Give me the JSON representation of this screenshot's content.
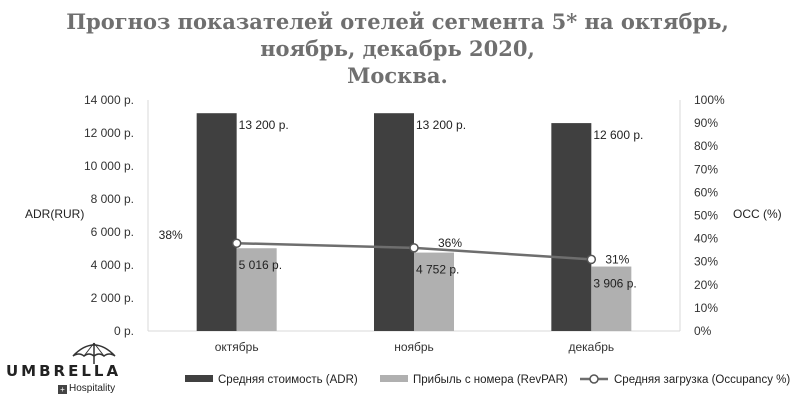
{
  "chart_data": {
    "type": "bar",
    "title_lines": [
      "Прогноз показателей отелей сегмента 5* на октябрь,",
      "ноябрь, декабрь 2020,",
      "Москва."
    ],
    "categories": [
      "октябрь",
      "ноябрь",
      "декабрь"
    ],
    "ylabel": "ADR(RUR)",
    "y2label": "OCC (%)",
    "ylim": [
      0,
      14000
    ],
    "y2lim": [
      0,
      100
    ],
    "yticks": [
      "0 р.",
      "2 000 р.",
      "4 000 р.",
      "6 000 р.",
      "8 000 р.",
      "10 000 р.",
      "12 000 р.",
      "14 000 р."
    ],
    "y2ticks": [
      "0%",
      "10%",
      "20%",
      "30%",
      "40%",
      "50%",
      "60%",
      "70%",
      "80%",
      "90%",
      "100%"
    ],
    "grid": false,
    "legend_position": "bottom",
    "series": [
      {
        "name": "Средняя стоимость (ADR)",
        "kind": "bar",
        "axis": "left",
        "color": "#404040",
        "values": [
          13200,
          13200,
          12600
        ],
        "labels": [
          "13 200 р.",
          "13 200 р.",
          "12 600 р."
        ]
      },
      {
        "name": "Прибыль с номера (RevPAR)",
        "kind": "bar",
        "axis": "left",
        "color": "#b0b0b0",
        "values": [
          5016,
          4752,
          3906
        ],
        "labels": [
          "5 016 р.",
          "4 752 р.",
          "3 906 р."
        ]
      },
      {
        "name": "Средняя загрузка (Occupancy %)",
        "kind": "line",
        "axis": "right",
        "color": "#6e6e6e",
        "values": [
          38,
          36,
          31
        ],
        "labels": [
          "38%",
          "36%",
          "31%"
        ]
      }
    ]
  },
  "logo": {
    "brand": "UMBRELLA",
    "sub": "Hospitality",
    "sub_mark": "+"
  }
}
